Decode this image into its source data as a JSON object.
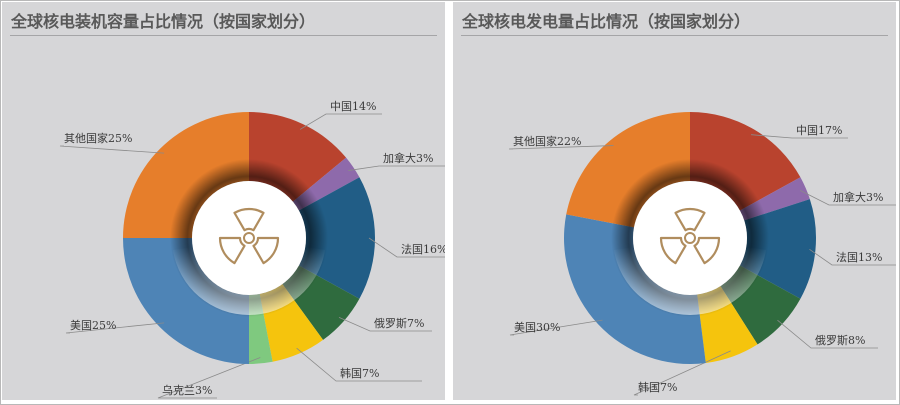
{
  "chart_data": [
    {
      "type": "pie",
      "title": "全球核电装机容量占比情况（按国家划分）",
      "legend": "none",
      "series": [
        {
          "name": "中国",
          "label": "中国14%",
          "value": 14,
          "color": "#b9432e"
        },
        {
          "name": "加拿大",
          "label": "加拿大3%",
          "value": 3,
          "color": "#8e6aab"
        },
        {
          "name": "法国",
          "label": "法国16%",
          "value": 16,
          "color": "#215d86"
        },
        {
          "name": "俄罗斯",
          "label": "俄罗斯7%",
          "value": 7,
          "color": "#2f6b3e"
        },
        {
          "name": "韩国",
          "label": "韩国7%",
          "value": 7,
          "color": "#f5c40d"
        },
        {
          "name": "乌克兰",
          "label": "乌克兰3%",
          "value": 3,
          "color": "#7fc97f"
        },
        {
          "name": "美国",
          "label": "美国25%",
          "value": 25,
          "color": "#4e84b6"
        },
        {
          "name": "其他国家",
          "label": "其他国家25%",
          "value": 25,
          "color": "#e67e2b"
        }
      ]
    },
    {
      "type": "pie",
      "title": "全球核电发电量占比情况（按国家划分）",
      "legend": "none",
      "series": [
        {
          "name": "中国",
          "label": "中国17%",
          "value": 17,
          "color": "#b9432e"
        },
        {
          "name": "加拿大",
          "label": "加拿大3%",
          "value": 3,
          "color": "#8e6aab"
        },
        {
          "name": "法国",
          "label": "法国13%",
          "value": 13,
          "color": "#215d86"
        },
        {
          "name": "俄罗斯",
          "label": "俄罗斯8%",
          "value": 8,
          "color": "#2f6b3e"
        },
        {
          "name": "韩国",
          "label": "韩国7%",
          "value": 7,
          "color": "#f5c40d"
        },
        {
          "name": "美国",
          "label": "美国30%",
          "value": 30,
          "color": "#4e84b6"
        },
        {
          "name": "其他国家",
          "label": "其他国家22%",
          "value": 22,
          "color": "#e67e2b"
        }
      ]
    }
  ]
}
